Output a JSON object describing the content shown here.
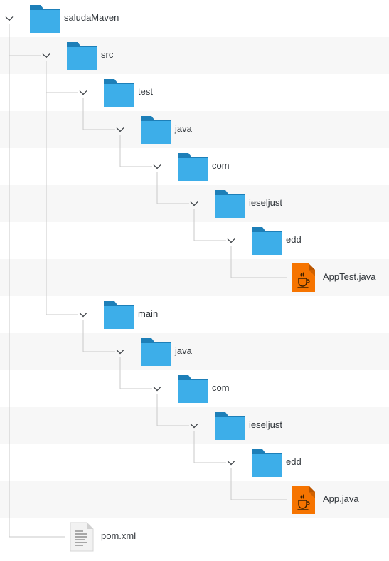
{
  "tree": {
    "rows": [
      {
        "name": "saludaMaven",
        "type": "folder",
        "depth": 0,
        "expanded": true
      },
      {
        "name": "src",
        "type": "folder",
        "depth": 1,
        "expanded": true
      },
      {
        "name": "test",
        "type": "folder",
        "depth": 2,
        "expanded": true
      },
      {
        "name": "java",
        "type": "folder",
        "depth": 3,
        "expanded": true
      },
      {
        "name": "com",
        "type": "folder",
        "depth": 4,
        "expanded": true
      },
      {
        "name": "ieseljust",
        "type": "folder",
        "depth": 5,
        "expanded": true
      },
      {
        "name": "edd",
        "type": "folder",
        "depth": 6,
        "expanded": true
      },
      {
        "name": "AppTest.java",
        "type": "java",
        "depth": 7
      },
      {
        "name": "main",
        "type": "folder",
        "depth": 2,
        "expanded": true
      },
      {
        "name": "java",
        "type": "folder",
        "depth": 3,
        "expanded": true
      },
      {
        "name": "com",
        "type": "folder",
        "depth": 4,
        "expanded": true
      },
      {
        "name": "ieseljust",
        "type": "folder",
        "depth": 5,
        "expanded": true
      },
      {
        "name": "edd",
        "type": "folder",
        "depth": 6,
        "expanded": true,
        "focused": true
      },
      {
        "name": "App.java",
        "type": "java",
        "depth": 7
      },
      {
        "name": "pom.xml",
        "type": "text",
        "depth": 1
      }
    ]
  },
  "colors": {
    "folder": "#3daee9",
    "folder_tab": "#1d7fb8",
    "java": "#f67400",
    "connector": "#c8c8c8",
    "alt_row": "#f7f7f7"
  },
  "icons": {
    "folder": "folder-icon",
    "java": "java-file-icon",
    "text": "text-file-icon",
    "expander": "chevron-down-icon"
  }
}
